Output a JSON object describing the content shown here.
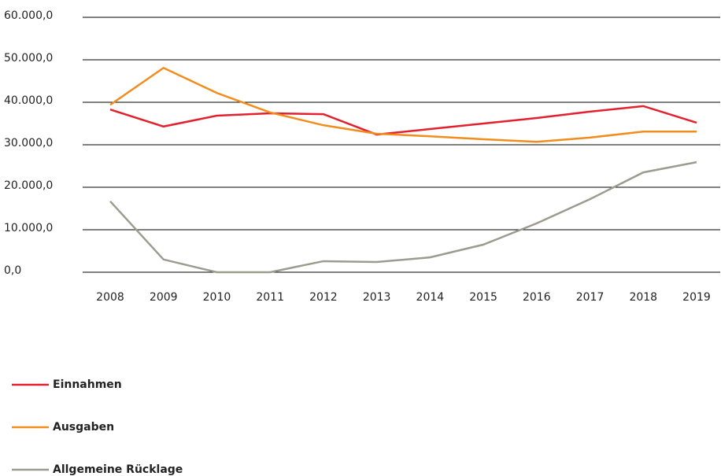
{
  "chart_data": {
    "type": "line",
    "categories": [
      "2008",
      "2009",
      "2010",
      "2011",
      "2012",
      "2013",
      "2014",
      "2015",
      "2016",
      "2017",
      "2018",
      "2019"
    ],
    "series": [
      {
        "name": "Einnahmen",
        "color": "#e3202e",
        "values": [
          38300,
          34300,
          36850,
          37400,
          37200,
          32400,
          33700,
          35000,
          36300,
          37800,
          39100,
          35200
        ]
      },
      {
        "name": "Ausgaben",
        "color": "#f28c1c",
        "values": [
          39400,
          48100,
          42200,
          37600,
          34600,
          32600,
          32000,
          31300,
          30700,
          31700,
          33100,
          33100
        ]
      },
      {
        "name": "Allgemeine Rücklage",
        "color": "#9b9b8f",
        "values": [
          16700,
          3000,
          0,
          0,
          2600,
          2400,
          3500,
          6500,
          11500,
          17200,
          23500,
          25900
        ]
      }
    ],
    "ylim": [
      0,
      60000
    ],
    "yticks": [
      {
        "value": 0,
        "label": "0,0"
      },
      {
        "value": 10000,
        "label": "10.000,0"
      },
      {
        "value": 20000,
        "label": "20.000,0"
      },
      {
        "value": 30000,
        "label": "30.000,0"
      },
      {
        "value": 40000,
        "label": "40.000,0"
      },
      {
        "value": 50000,
        "label": "50.000,0"
      },
      {
        "value": 60000,
        "label": "60.000,0"
      }
    ],
    "grid": true,
    "legend": "bottom-left"
  }
}
